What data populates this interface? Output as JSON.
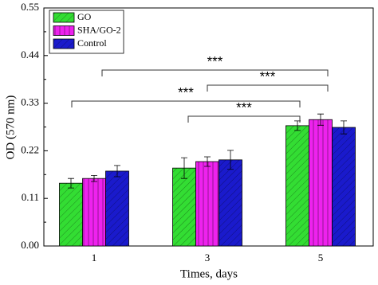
{
  "chart_data": {
    "type": "bar",
    "x_label": "Times, days",
    "y_label": "OD (570 nm)",
    "categories": [
      "1",
      "3",
      "5"
    ],
    "series": [
      {
        "name": "GO",
        "color": "#33dd33",
        "values": [
          0.145,
          0.18,
          0.278
        ],
        "errors": [
          0.011,
          0.024,
          0.011
        ]
      },
      {
        "name": "SHA/GO-2",
        "color": "#ee22ee",
        "values": [
          0.156,
          0.195,
          0.292
        ],
        "errors": [
          0.007,
          0.011,
          0.013
        ]
      },
      {
        "name": "Control",
        "color": "#1a1acc",
        "values": [
          0.173,
          0.199,
          0.274
        ],
        "errors": [
          0.013,
          0.022,
          0.015
        ]
      }
    ],
    "ylim": [
      0,
      0.55
    ],
    "yticks": [
      {
        "value": 0,
        "label": "0.00"
      },
      0.11,
      0.22,
      0.33,
      0.44,
      0.55
    ],
    "legend": "upper left",
    "annotations": [
      "***",
      "***",
      "***",
      "***"
    ]
  }
}
